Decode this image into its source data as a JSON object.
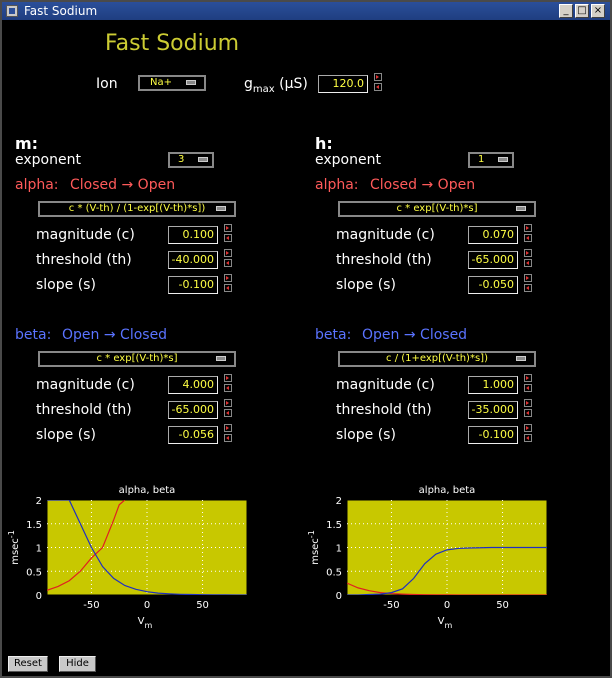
{
  "window": {
    "title": "Fast Sodium"
  },
  "header": {
    "title": "Fast Sodium",
    "ion_label": "Ion",
    "ion_value": "Na+",
    "gmax_label_g": "g",
    "gmax_label_sub": "max",
    "gmax_unit": "(µS)",
    "gmax_value": "120.0"
  },
  "m": {
    "heading": "m:",
    "exponent_label": "exponent",
    "exponent_value": "3",
    "alpha": {
      "label": "alpha:",
      "transition_from": "Closed",
      "arrow": "→",
      "transition_to": "Open",
      "formula": "c * (V-th) / (1-exp[(V-th)*s])",
      "magnitude_label": "magnitude (c)",
      "magnitude": "0.100",
      "threshold_label": "threshold (th)",
      "threshold": "-40.000",
      "slope_label": "slope (s)",
      "slope": "-0.100"
    },
    "beta": {
      "label": "beta:",
      "transition_from": "Open",
      "arrow": "→",
      "transition_to": "Closed",
      "formula": "c * exp[(V-th)*s]",
      "magnitude_label": "magnitude (c)",
      "magnitude": "4.000",
      "threshold_label": "threshold (th)",
      "threshold": "-65.000",
      "slope_label": "slope (s)",
      "slope": "-0.056"
    }
  },
  "h": {
    "heading": "h:",
    "exponent_label": "exponent",
    "exponent_value": "1",
    "alpha": {
      "label": "alpha:",
      "transition_from": "Closed",
      "arrow": "→",
      "transition_to": "Open",
      "formula": "c * exp[(V-th)*s]",
      "magnitude_label": "magnitude (c)",
      "magnitude": "0.070",
      "threshold_label": "threshold (th)",
      "threshold": "-65.000",
      "slope_label": "slope (s)",
      "slope": "-0.050"
    },
    "beta": {
      "label": "beta:",
      "transition_from": "Open",
      "arrow": "→",
      "transition_to": "Closed",
      "formula": "c / (1+exp[(V-th)*s])",
      "magnitude_label": "magnitude (c)",
      "magnitude": "1.000",
      "threshold_label": "threshold (th)",
      "threshold": "-35.000",
      "slope_label": "slope (s)",
      "slope": "-0.100"
    }
  },
  "buttons": {
    "reset": "Reset",
    "hide": "Hide"
  },
  "colors": {
    "plot_bg": "#c8c800",
    "alpha": "#e02020",
    "beta": "#2030c0",
    "header": "#cccc33"
  },
  "chart_data": [
    {
      "type": "line",
      "title": "alpha, beta",
      "xlabel": "V",
      "xlabel_sub": "m",
      "ylabel": "msec",
      "ylabel_sup": "-1",
      "xlim": [
        -90,
        90
      ],
      "ylim": [
        0,
        2
      ],
      "xticks": [
        -50,
        0,
        50
      ],
      "yticks": [
        0,
        0.5,
        1,
        1.5,
        2
      ],
      "xtick_labels": [
        "-50",
        "0",
        "50"
      ],
      "ytick_labels": [
        "0",
        "0.5",
        "1",
        "1.5",
        "2"
      ],
      "grid": true,
      "series": [
        {
          "kind": "alpha",
          "x": [
            -90,
            -80,
            -70,
            -60,
            -50,
            -40,
            -30,
            -25,
            -20
          ],
          "y": [
            0.1,
            0.18,
            0.3,
            0.5,
            0.78,
            1.0,
            1.58,
            1.9,
            2.0
          ]
        },
        {
          "kind": "beta",
          "x": [
            -90,
            -80,
            -70,
            -60,
            -50,
            -40,
            -30,
            -20,
            -10,
            0,
            10,
            20,
            30,
            40,
            50,
            60,
            70,
            80,
            90
          ],
          "y": [
            2.0,
            2.0,
            2.0,
            1.5,
            1.0,
            0.6,
            0.35,
            0.2,
            0.12,
            0.07,
            0.04,
            0.025,
            0.015,
            0.01,
            0.005,
            0.003,
            0.002,
            0.001,
            0.0
          ]
        }
      ]
    },
    {
      "type": "line",
      "title": "alpha, beta",
      "xlabel": "V",
      "xlabel_sub": "m",
      "ylabel": "msec",
      "ylabel_sup": "-1",
      "xlim": [
        -90,
        90
      ],
      "ylim": [
        0,
        2
      ],
      "xticks": [
        -50,
        0,
        50
      ],
      "yticks": [
        0,
        0.5,
        1,
        1.5,
        2
      ],
      "xtick_labels": [
        "-50",
        "0",
        "50"
      ],
      "ytick_labels": [
        "0",
        "0.5",
        "1",
        "1.5",
        "2"
      ],
      "grid": true,
      "series": [
        {
          "kind": "alpha",
          "x": [
            -90,
            -80,
            -70,
            -60,
            -50,
            -40,
            -30,
            -20,
            -10,
            0,
            10,
            20,
            40,
            60,
            90
          ],
          "y": [
            0.25,
            0.15,
            0.09,
            0.05,
            0.03,
            0.018,
            0.01,
            0.006,
            0.004,
            0.002,
            0.001,
            0.0,
            0.0,
            0.0,
            0.0
          ]
        },
        {
          "kind": "beta",
          "x": [
            -90,
            -80,
            -70,
            -60,
            -50,
            -40,
            -30,
            -20,
            -10,
            0,
            10,
            20,
            40,
            60,
            90
          ],
          "y": [
            0.0,
            0.0,
            0.01,
            0.02,
            0.05,
            0.13,
            0.35,
            0.66,
            0.86,
            0.95,
            0.98,
            0.99,
            1.0,
            1.0,
            1.0
          ]
        }
      ]
    }
  ]
}
